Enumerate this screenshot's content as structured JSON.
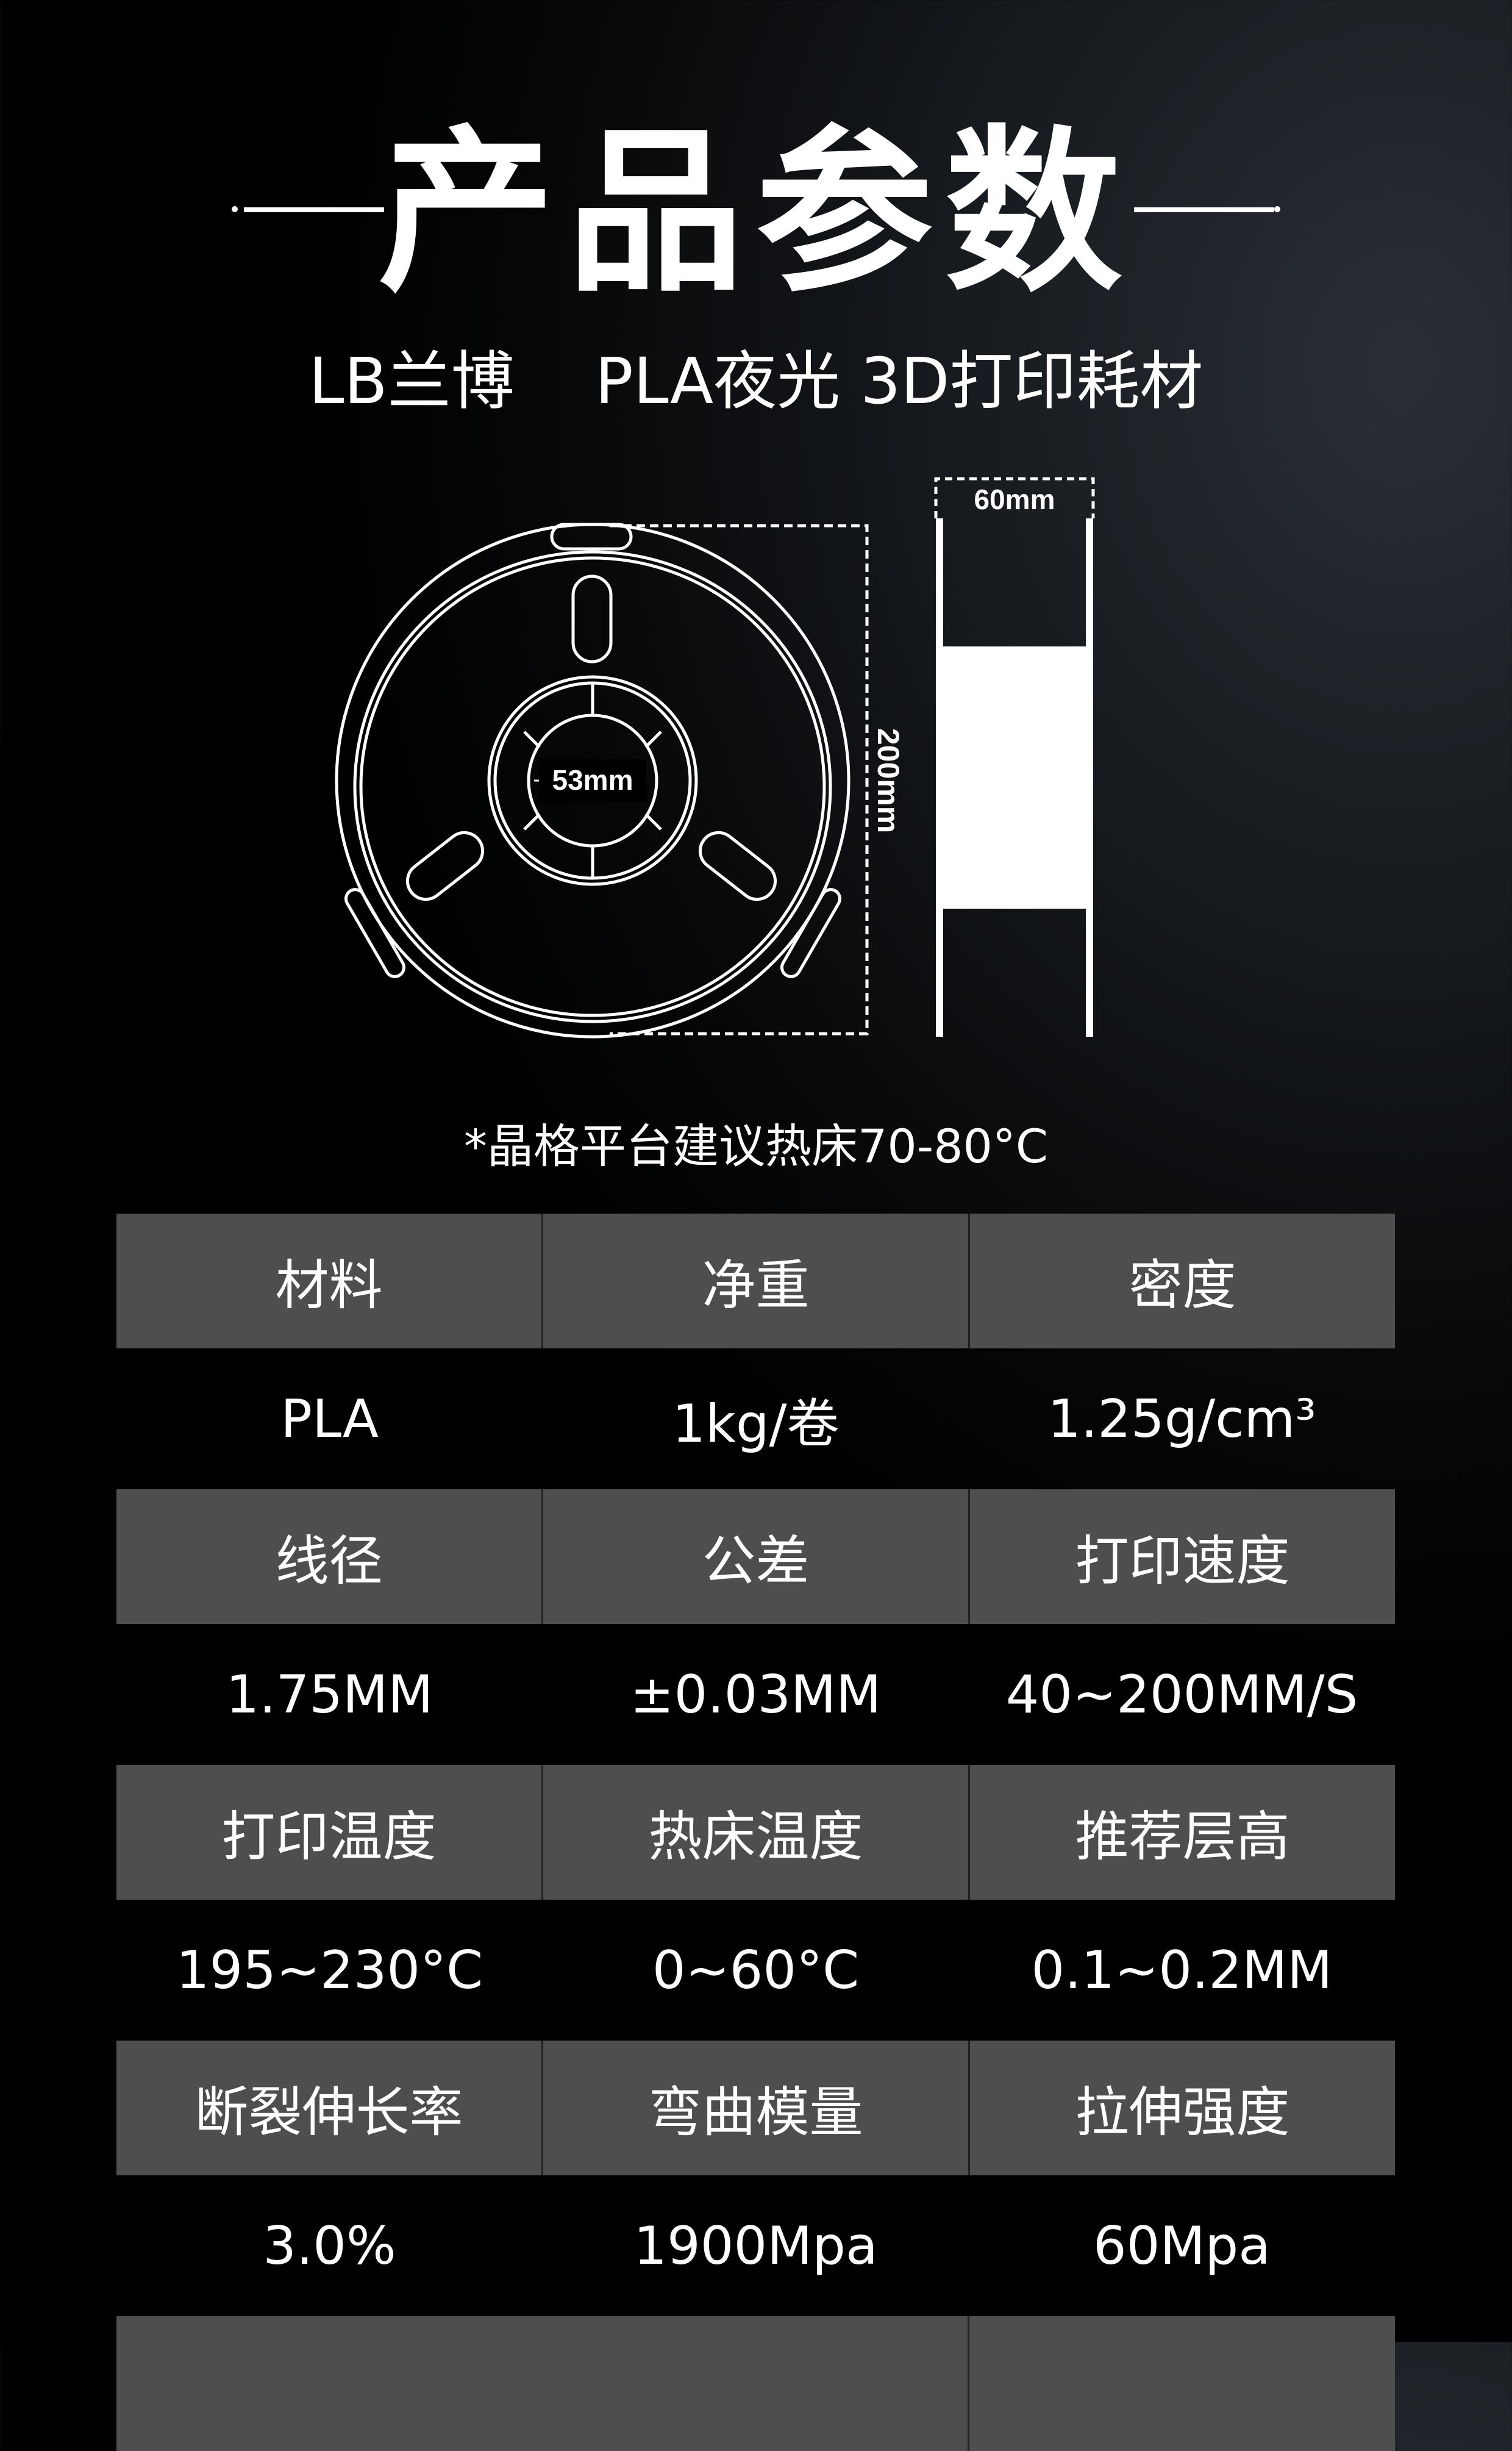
{
  "header": {
    "title": "产品参数",
    "subtitle": "LB兰博    PLA夜光 3D打印耗材"
  },
  "diagram": {
    "inner_diameter": "53mm",
    "outer_diameter": "200mm",
    "width": "60mm"
  },
  "note": "*晶格平台建议热床70-80°C",
  "table": {
    "rows": [
      {
        "headers": [
          "材料",
          "净重",
          "密度"
        ],
        "values": [
          "PLA",
          "1kg/卷",
          "1.25g/cm³"
        ]
      },
      {
        "headers": [
          "线径",
          "公差",
          "打印速度"
        ],
        "values": [
          "1.75MM",
          "±0.03MM",
          "40~200MM/S"
        ]
      },
      {
        "headers": [
          "打印温度",
          "热床温度",
          "推荐层高"
        ],
        "values": [
          "195~230°C",
          "0~60°C",
          "0.1~0.2MM"
        ]
      },
      {
        "headers": [
          "断裂伸长率",
          "弯曲模量",
          "拉伸强度"
        ],
        "values": [
          "3.0%",
          "1900Mpa",
          "60Mpa"
        ]
      }
    ]
  },
  "colors": {
    "header_cell": "#4e4e4e",
    "background": "#000000",
    "text": "#ffffff"
  }
}
